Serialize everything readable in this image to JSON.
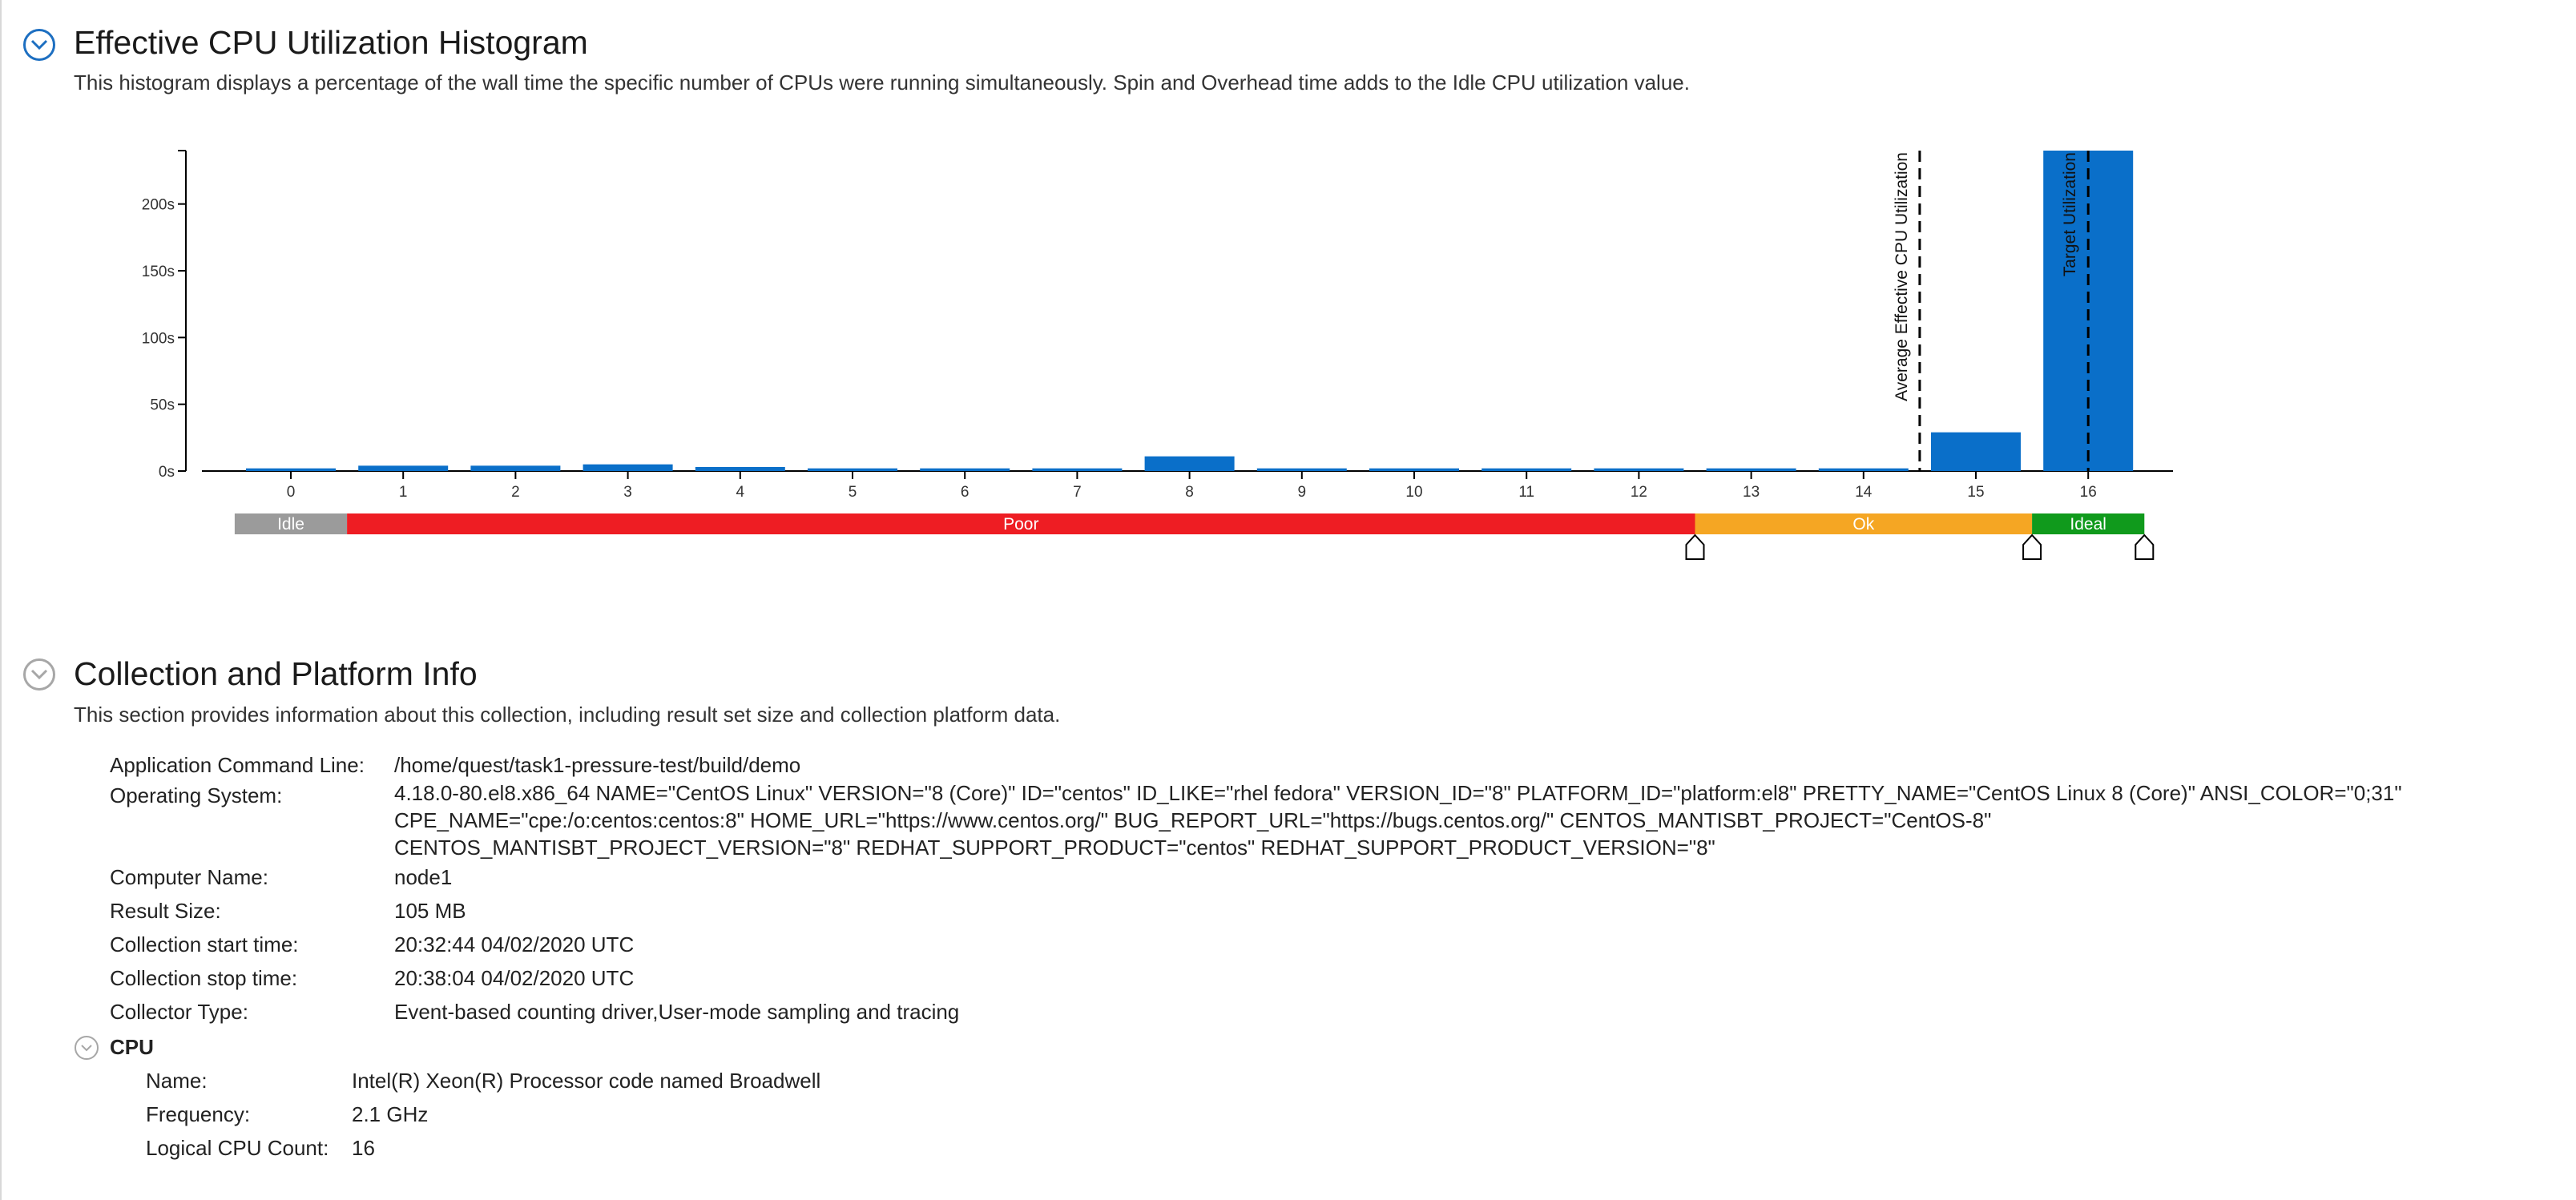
{
  "histogram": {
    "title": "Effective CPU Utilization Histogram",
    "description": "This histogram displays a percentage of the wall time the specific number of CPUs were running simultaneously. Spin and Overhead time adds to the Idle CPU utilization value."
  },
  "chart_data": {
    "type": "bar",
    "categories": [
      "0",
      "1",
      "2",
      "3",
      "4",
      "5",
      "6",
      "7",
      "8",
      "9",
      "10",
      "11",
      "12",
      "13",
      "14",
      "15",
      "16"
    ],
    "values": [
      2,
      4,
      4,
      5,
      3,
      2,
      2,
      2,
      11,
      2,
      2,
      2,
      2,
      2,
      2,
      29,
      240
    ],
    "ylim": [
      0,
      240
    ],
    "yticks": [
      "0s",
      "50s",
      "100s",
      "150s",
      "200s"
    ],
    "ytick_values": [
      0,
      50,
      100,
      150,
      200
    ],
    "bar_color": "#0a6fc9",
    "markers": [
      {
        "label": "Average Effective CPU Utilization",
        "x": 14.5
      },
      {
        "label": "Target Utilization",
        "x": 16
      }
    ],
    "bands": [
      {
        "label": "Idle",
        "from": -0.5,
        "to": 0.5,
        "color": "#9b9b9b"
      },
      {
        "label": "Poor",
        "from": 0.5,
        "to": 12.5,
        "color": "#ee1d23"
      },
      {
        "label": "Ok",
        "from": 12.5,
        "to": 15.5,
        "color": "#f5a623"
      },
      {
        "label": "Ideal",
        "from": 15.5,
        "to": 16.5,
        "color": "#109a1c"
      }
    ],
    "thresholds": [
      12.5,
      15.5,
      16.5
    ]
  },
  "collection": {
    "title": "Collection and Platform Info",
    "description": "This section provides information about this collection, including result set size and collection platform data.",
    "app_cmd_label": "Application Command Line:",
    "app_cmd_value": "/home/quest/task1-pressure-test/build/demo",
    "os_label": "Operating System:",
    "os_line1": "4.18.0-80.el8.x86_64 NAME=\"CentOS Linux\" VERSION=\"8 (Core)\" ID=\"centos\" ID_LIKE=\"rhel fedora\" VERSION_ID=\"8\" PLATFORM_ID=\"platform:el8\" PRETTY_NAME=\"CentOS Linux 8 (Core)\" ANSI_COLOR=\"0;31\"",
    "os_line2": "CPE_NAME=\"cpe:/o:centos:centos:8\" HOME_URL=\"https://www.centos.org/\" BUG_REPORT_URL=\"https://bugs.centos.org/\" CENTOS_MANTISBT_PROJECT=\"CentOS-8\"",
    "os_line3": "CENTOS_MANTISBT_PROJECT_VERSION=\"8\" REDHAT_SUPPORT_PRODUCT=\"centos\" REDHAT_SUPPORT_PRODUCT_VERSION=\"8\"",
    "computer_label": "Computer Name:",
    "computer_value": "node1",
    "result_label": "Result Size:",
    "result_value": "105 MB",
    "start_label": "Collection start time:",
    "start_value": "20:32:44 04/02/2020 UTC",
    "stop_label": "Collection stop time:",
    "stop_value": "20:38:04 04/02/2020 UTC",
    "collector_label": "Collector Type:",
    "collector_value": "Event-based counting driver,User-mode sampling and tracing",
    "cpu": {
      "title": "CPU",
      "name_label": "Name:",
      "name_value": "Intel(R) Xeon(R) Processor code named Broadwell",
      "freq_label": "Frequency:",
      "freq_value": "2.1 GHz",
      "count_label": "Logical CPU Count:",
      "count_value": "16"
    }
  }
}
